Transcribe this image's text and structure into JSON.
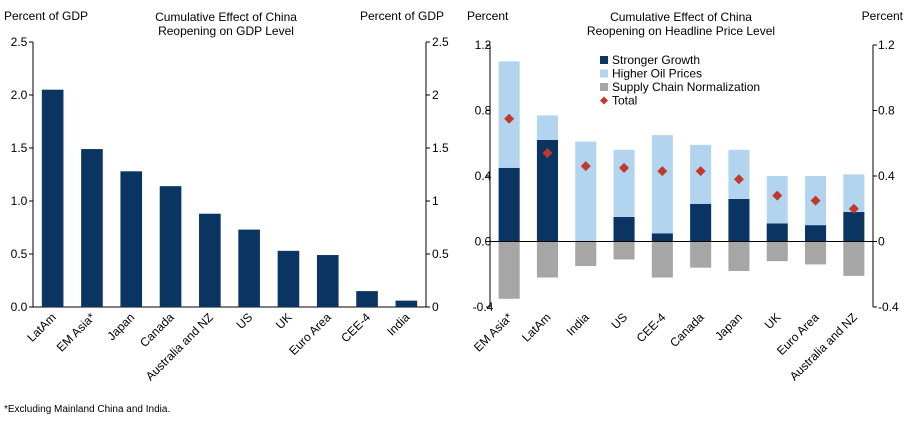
{
  "chart_data": [
    {
      "type": "bar",
      "title": "Cumulative Effect of China Reopening on GDP Level",
      "title_lines": [
        "Cumulative  Effect  of China",
        "Reopening  on GDP Level"
      ],
      "ylabel_left": "Percent of GDP",
      "ylabel_right": "Percent of GDP",
      "ylim": [
        0,
        2.5
      ],
      "yticks": [
        "0.0",
        "0.5",
        "1.0",
        "1.5",
        "2.0",
        "2.5"
      ],
      "yticks_right": [
        "0",
        "0.5",
        "1",
        "1.5",
        "2",
        "2.5"
      ],
      "ytick_values": [
        0,
        0.5,
        1.0,
        1.5,
        2.0,
        2.5
      ],
      "categories": [
        "LatAm",
        "EM Asia*",
        "Japan",
        "Canada",
        "Australia and NZ",
        "US",
        "UK",
        "Euro Area",
        "CEE-4",
        "India"
      ],
      "values": [
        2.05,
        1.49,
        1.28,
        1.14,
        0.88,
        0.73,
        0.53,
        0.49,
        0.15,
        0.06
      ],
      "color": "#0a3461",
      "grid": false
    },
    {
      "type": "bar",
      "stacked": true,
      "title": "Cumulative Effect of China Reopening on Headline Price Level",
      "title_lines": [
        "Cumulative  Effect  of China",
        "Reopening  on Headline  Price Level"
      ],
      "ylabel_left": "Percent",
      "ylabel_right": "Percent",
      "ylim": [
        -0.4,
        1.2
      ],
      "yticks": [
        "-0.4",
        "0.0",
        "0.4",
        "0.8",
        "1.2"
      ],
      "yticks_right": [
        "-0.4",
        "0",
        "0.4",
        "0.8",
        "1.2"
      ],
      "ytick_values": [
        -0.4,
        0.0,
        0.4,
        0.8,
        1.2
      ],
      "categories": [
        "EM Asia*",
        "LatAm",
        "India",
        "US",
        "CEE-4",
        "Canada",
        "Japan",
        "UK",
        "Euro Area",
        "Australia and NZ"
      ],
      "series": [
        {
          "name": "Stronger Growth",
          "color": "#0a3461",
          "values": [
            0.45,
            0.62,
            0.0,
            0.15,
            0.05,
            0.23,
            0.26,
            0.11,
            0.1,
            0.18
          ]
        },
        {
          "name": "Higher Oil Prices",
          "color": "#b3d4ef",
          "values": [
            0.65,
            0.15,
            0.61,
            0.41,
            0.6,
            0.36,
            0.3,
            0.29,
            0.3,
            0.23
          ]
        },
        {
          "name": "Supply Chain Normalization",
          "color": "#a6a6a6",
          "values": [
            -0.35,
            -0.22,
            -0.15,
            -0.11,
            -0.22,
            -0.16,
            -0.18,
            -0.12,
            -0.14,
            -0.21
          ]
        },
        {
          "name": "Total",
          "color": "#c0392b",
          "marker": "diamond",
          "values": [
            0.75,
            0.54,
            0.46,
            0.45,
            0.43,
            0.43,
            0.38,
            0.28,
            0.25,
            0.2
          ]
        }
      ],
      "legend_position": "top",
      "grid": false
    }
  ],
  "footnote": "*Excluding Mainland China and India."
}
